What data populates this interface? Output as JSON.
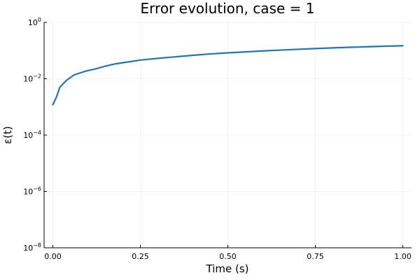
{
  "chart_data": {
    "type": "line",
    "title": "Error evolution, case = 1",
    "xlabel": "Time (s)",
    "ylabel": "ε(t)",
    "xlim": [
      -0.025,
      1.025
    ],
    "ylim": [
      1e-08,
      1
    ],
    "yscale": "log",
    "grid": true,
    "legend": "none",
    "xticks": [
      0,
      0.25,
      0.5,
      0.75,
      1.0
    ],
    "xtick_labels": [
      "0.00",
      "0.25",
      "0.50",
      "0.75",
      "1.00"
    ],
    "yticks": [
      1e-08,
      1e-06,
      0.0001,
      0.01,
      1
    ],
    "ytick_labels": [
      {
        "base": "10",
        "exp": "−8"
      },
      {
        "base": "10",
        "exp": "−6"
      },
      {
        "base": "10",
        "exp": "−4"
      },
      {
        "base": "10",
        "exp": "−2"
      },
      {
        "base": "10",
        "exp": "0"
      }
    ],
    "series": [
      {
        "color": "#1f77b4",
        "x": [
          0,
          0.01,
          0.02,
          0.03,
          0.04,
          0.05,
          0.06,
          0.08,
          0.1,
          0.12,
          0.15,
          0.18,
          0.2,
          0.25,
          0.3,
          0.35,
          0.4,
          0.45,
          0.5,
          0.55,
          0.6,
          0.65,
          0.7,
          0.75,
          0.8,
          0.85,
          0.9,
          0.95,
          1.0
        ],
        "y": [
          0.0012,
          0.0022,
          0.005,
          0.0068,
          0.009,
          0.011,
          0.0135,
          0.0165,
          0.0195,
          0.022,
          0.028,
          0.034,
          0.037,
          0.046,
          0.053,
          0.06,
          0.068,
          0.076,
          0.083,
          0.09,
          0.097,
          0.104,
          0.111,
          0.118,
          0.125,
          0.131,
          0.137,
          0.143,
          0.148
        ]
      }
    ]
  }
}
